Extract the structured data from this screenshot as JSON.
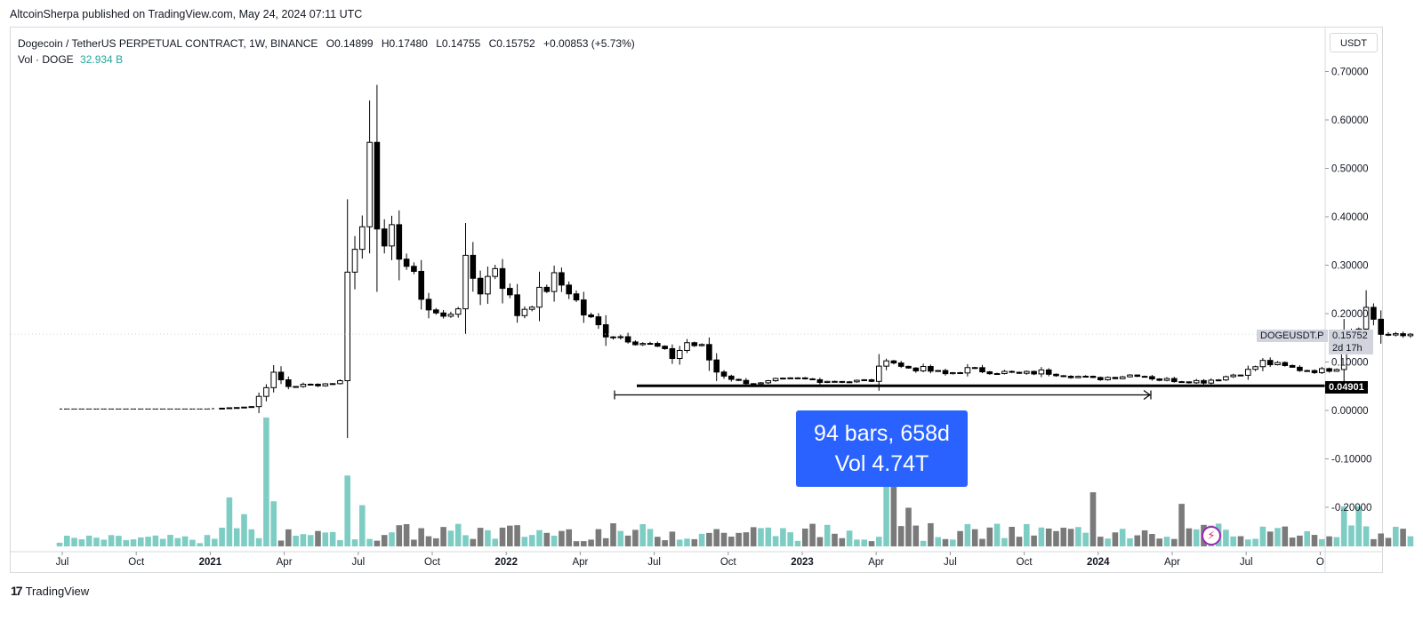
{
  "publisher_line": "AltcoinSherpa published on TradingView.com, May 24, 2024 07:11 UTC",
  "legend": {
    "symbol": "Dogecoin / TetherUS PERPETUAL CONTRACT, 1W, BINANCE",
    "open": "O0.14899",
    "high": "H0.17480",
    "low": "L0.14755",
    "close": "C0.15752",
    "change": "+0.00853 (+5.73%)",
    "vol_label": "Vol · DOGE",
    "vol_value": "32.934 B"
  },
  "currency": "USDT",
  "price_tag": {
    "symbol": "DOGEUSDT.P",
    "price": "0.15752",
    "countdown": "2d 17h"
  },
  "level_tag": "0.04901",
  "measure": {
    "line1": "94 bars, 658d",
    "line2": "Vol 4.74T"
  },
  "footer_brand": "TradingView",
  "colors": {
    "up_volume": "#7ecdc4",
    "down_volume": "#7a7a7a",
    "candle_up": "#ffffff",
    "candle_down": "#000000",
    "measure_bg": "#2962ff",
    "level_line": "#000000"
  },
  "chart_data": {
    "type": "candlestick",
    "timeframe": "1W",
    "y_axis_ticks": [
      "0.70000",
      "0.60000",
      "0.50000",
      "0.40000",
      "0.30000",
      "0.20000",
      "0.10000",
      "0.00000",
      "-0.10000",
      "-0.20000"
    ],
    "y_axis_values": [
      0.7,
      0.6,
      0.5,
      0.4,
      0.3,
      0.2,
      0.1,
      0.0,
      -0.1,
      -0.2
    ],
    "x_axis_ticks": [
      "Jul",
      "Oct",
      "2021",
      "Apr",
      "Jul",
      "Oct",
      "2022",
      "Apr",
      "Jul",
      "Oct",
      "2023",
      "Apr",
      "Jul",
      "Oct",
      "2024",
      "Apr",
      "Jul",
      "O"
    ],
    "x_axis_bold": [
      false,
      false,
      true,
      false,
      false,
      false,
      true,
      false,
      false,
      false,
      true,
      false,
      false,
      false,
      true,
      false,
      false,
      false
    ],
    "ylim": [
      -0.27,
      0.75
    ],
    "horizontal_level": 0.04901,
    "last_close": 0.15752,
    "measure_range": {
      "bars": 94,
      "days": 658,
      "volume": "4.74T",
      "start": "2022-06",
      "end": "2024-03",
      "price": 0.033
    },
    "anchors": [
      {
        "t": 0,
        "p": 0.003
      },
      {
        "t": 20,
        "p": 0.003
      },
      {
        "t": 26,
        "p": 0.008
      },
      {
        "t": 28,
        "p": 0.05
      },
      {
        "t": 29,
        "p": 0.075
      },
      {
        "t": 31,
        "p": 0.05
      },
      {
        "t": 36,
        "p": 0.055
      },
      {
        "t": 38,
        "p": 0.06
      },
      {
        "t": 39,
        "p": 0.3
      },
      {
        "t": 40,
        "p": 0.33
      },
      {
        "t": 41,
        "p": 0.38
      },
      {
        "t": 42,
        "p": 0.58
      },
      {
        "t": 43,
        "p": 0.4
      },
      {
        "t": 44,
        "p": 0.32
      },
      {
        "t": 45,
        "p": 0.36
      },
      {
        "t": 47,
        "p": 0.3
      },
      {
        "t": 50,
        "p": 0.21
      },
      {
        "t": 52,
        "p": 0.19
      },
      {
        "t": 54,
        "p": 0.22
      },
      {
        "t": 55,
        "p": 0.3
      },
      {
        "t": 57,
        "p": 0.25
      },
      {
        "t": 59,
        "p": 0.3
      },
      {
        "t": 61,
        "p": 0.23
      },
      {
        "t": 62,
        "p": 0.2
      },
      {
        "t": 65,
        "p": 0.24
      },
      {
        "t": 67,
        "p": 0.27
      },
      {
        "t": 69,
        "p": 0.25
      },
      {
        "t": 71,
        "p": 0.2
      },
      {
        "t": 74,
        "p": 0.16
      },
      {
        "t": 77,
        "p": 0.15
      },
      {
        "t": 79,
        "p": 0.14
      },
      {
        "t": 81,
        "p": 0.13
      },
      {
        "t": 83,
        "p": 0.11
      },
      {
        "t": 85,
        "p": 0.14
      },
      {
        "t": 87,
        "p": 0.13
      },
      {
        "t": 89,
        "p": 0.08
      },
      {
        "t": 92,
        "p": 0.06
      },
      {
        "t": 95,
        "p": 0.055
      },
      {
        "t": 97,
        "p": 0.062
      },
      {
        "t": 100,
        "p": 0.065
      },
      {
        "t": 103,
        "p": 0.062
      },
      {
        "t": 107,
        "p": 0.06
      },
      {
        "t": 110,
        "p": 0.062
      },
      {
        "t": 112,
        "p": 0.11
      },
      {
        "t": 114,
        "p": 0.09
      },
      {
        "t": 117,
        "p": 0.085
      },
      {
        "t": 120,
        "p": 0.075
      },
      {
        "t": 123,
        "p": 0.085
      },
      {
        "t": 127,
        "p": 0.08
      },
      {
        "t": 130,
        "p": 0.075
      },
      {
        "t": 133,
        "p": 0.08
      },
      {
        "t": 136,
        "p": 0.075
      },
      {
        "t": 140,
        "p": 0.065
      },
      {
        "t": 143,
        "p": 0.07
      },
      {
        "t": 146,
        "p": 0.075
      },
      {
        "t": 149,
        "p": 0.064
      },
      {
        "t": 152,
        "p": 0.062
      },
      {
        "t": 155,
        "p": 0.06
      },
      {
        "t": 158,
        "p": 0.07
      },
      {
        "t": 161,
        "p": 0.082
      },
      {
        "t": 163,
        "p": 0.1
      },
      {
        "t": 166,
        "p": 0.09
      },
      {
        "t": 168,
        "p": 0.085
      },
      {
        "t": 171,
        "p": 0.082
      },
      {
        "t": 173,
        "p": 0.09
      },
      {
        "t": 174,
        "p": 0.15
      },
      {
        "t": 175,
        "p": 0.165
      },
      {
        "t": 176,
        "p": 0.18
      },
      {
        "t": 177,
        "p": 0.21
      },
      {
        "t": 178,
        "p": 0.19
      },
      {
        "t": 179,
        "p": 0.16
      },
      {
        "t": 181,
        "p": 0.15
      },
      {
        "t": 183,
        "p": 0.15752
      }
    ],
    "volume_peaks": [
      {
        "t": 23,
        "v": 0.38
      },
      {
        "t": 25,
        "v": 0.25
      },
      {
        "t": 28,
        "v": 1.0
      },
      {
        "t": 29,
        "v": 0.35
      },
      {
        "t": 39,
        "v": 0.55
      },
      {
        "t": 41,
        "v": 0.32
      },
      {
        "t": 112,
        "v": 0.8
      },
      {
        "t": 113,
        "v": 0.65
      },
      {
        "t": 115,
        "v": 0.3
      },
      {
        "t": 140,
        "v": 0.42
      },
      {
        "t": 152,
        "v": 0.33
      },
      {
        "t": 174,
        "v": 0.31
      },
      {
        "t": 176,
        "v": 0.31
      }
    ]
  }
}
